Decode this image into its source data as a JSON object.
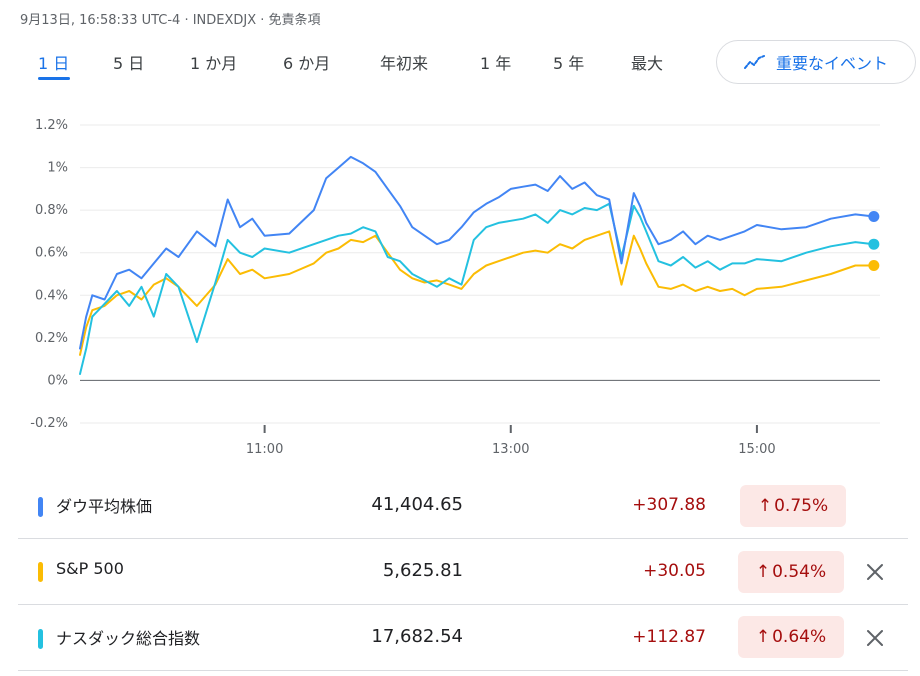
{
  "header": {
    "meta": "9月13日, 16:58:33 UTC-4 · INDEXDJX · 免責条項"
  },
  "tabs": [
    {
      "label": "1 日",
      "active": true
    },
    {
      "label": "5 日",
      "active": false
    },
    {
      "label": "1 か月",
      "active": false
    },
    {
      "label": "6 か月",
      "active": false
    },
    {
      "label": "年初来",
      "active": false
    },
    {
      "label": "1 年",
      "active": false
    },
    {
      "label": "5 年",
      "active": false
    },
    {
      "label": "最大",
      "active": false
    }
  ],
  "events_button": {
    "label": "重要なイベント",
    "icon": "trend-line-icon"
  },
  "chart_data": {
    "type": "line",
    "x_unit": "hours (ET)",
    "xlim": [
      9.5,
      16.0
    ],
    "ylim": [
      -0.2,
      1.2
    ],
    "y_ticks": [
      "1.2%",
      "1%",
      "0.8%",
      "0.6%",
      "0.4%",
      "0.2%",
      "0%",
      "-0.2%"
    ],
    "y_tick_values": [
      1.2,
      1.0,
      0.8,
      0.6,
      0.4,
      0.2,
      0.0,
      -0.2
    ],
    "x_ticks": [
      "11:00",
      "13:00",
      "15:00"
    ],
    "x_tick_values": [
      11.0,
      13.0,
      15.0
    ],
    "series": [
      {
        "name": "ダウ平均株価",
        "color": "#4285f4",
        "x": [
          9.5,
          9.55,
          9.6,
          9.7,
          9.8,
          9.9,
          10.0,
          10.1,
          10.2,
          10.3,
          10.45,
          10.6,
          10.7,
          10.8,
          10.9,
          11.0,
          11.2,
          11.4,
          11.5,
          11.6,
          11.7,
          11.8,
          11.9,
          12.0,
          12.1,
          12.2,
          12.3,
          12.4,
          12.5,
          12.6,
          12.7,
          12.8,
          12.9,
          13.0,
          13.1,
          13.2,
          13.3,
          13.4,
          13.5,
          13.6,
          13.7,
          13.8,
          13.9,
          14.0,
          14.05,
          14.1,
          14.2,
          14.3,
          14.4,
          14.5,
          14.6,
          14.7,
          14.8,
          14.9,
          15.0,
          15.2,
          15.4,
          15.6,
          15.8,
          15.95
        ],
        "y": [
          0.15,
          0.3,
          0.4,
          0.38,
          0.5,
          0.52,
          0.48,
          0.55,
          0.62,
          0.58,
          0.7,
          0.63,
          0.85,
          0.72,
          0.76,
          0.68,
          0.69,
          0.8,
          0.95,
          1.0,
          1.05,
          1.02,
          0.98,
          0.9,
          0.82,
          0.72,
          0.68,
          0.64,
          0.66,
          0.72,
          0.79,
          0.83,
          0.86,
          0.9,
          0.91,
          0.92,
          0.89,
          0.96,
          0.9,
          0.93,
          0.87,
          0.85,
          0.55,
          0.88,
          0.82,
          0.74,
          0.64,
          0.66,
          0.7,
          0.64,
          0.68,
          0.66,
          0.68,
          0.7,
          0.73,
          0.71,
          0.72,
          0.76,
          0.78,
          0.77
        ]
      },
      {
        "name": "S&P 500",
        "color": "#fbbc04",
        "x": [
          9.5,
          9.55,
          9.6,
          9.7,
          9.8,
          9.9,
          10.0,
          10.1,
          10.2,
          10.3,
          10.45,
          10.6,
          10.7,
          10.8,
          10.9,
          11.0,
          11.2,
          11.4,
          11.5,
          11.6,
          11.7,
          11.8,
          11.9,
          12.0,
          12.1,
          12.2,
          12.3,
          12.4,
          12.5,
          12.6,
          12.7,
          12.8,
          12.9,
          13.0,
          13.1,
          13.2,
          13.3,
          13.4,
          13.5,
          13.6,
          13.7,
          13.8,
          13.9,
          14.0,
          14.05,
          14.1,
          14.2,
          14.3,
          14.4,
          14.5,
          14.6,
          14.7,
          14.8,
          14.9,
          15.0,
          15.2,
          15.4,
          15.6,
          15.8,
          15.95
        ],
        "y": [
          0.12,
          0.25,
          0.33,
          0.35,
          0.4,
          0.42,
          0.38,
          0.45,
          0.48,
          0.44,
          0.35,
          0.45,
          0.57,
          0.5,
          0.52,
          0.48,
          0.5,
          0.55,
          0.6,
          0.62,
          0.66,
          0.65,
          0.68,
          0.6,
          0.52,
          0.48,
          0.46,
          0.47,
          0.45,
          0.43,
          0.5,
          0.54,
          0.56,
          0.58,
          0.6,
          0.61,
          0.6,
          0.64,
          0.62,
          0.66,
          0.68,
          0.7,
          0.45,
          0.68,
          0.62,
          0.55,
          0.44,
          0.43,
          0.45,
          0.42,
          0.44,
          0.42,
          0.43,
          0.4,
          0.43,
          0.44,
          0.47,
          0.5,
          0.54,
          0.54
        ]
      },
      {
        "name": "ナスダック総合指数",
        "color": "#24c1e0",
        "x": [
          9.5,
          9.55,
          9.6,
          9.7,
          9.8,
          9.9,
          10.0,
          10.1,
          10.2,
          10.3,
          10.45,
          10.6,
          10.7,
          10.8,
          10.9,
          11.0,
          11.2,
          11.4,
          11.5,
          11.6,
          11.7,
          11.8,
          11.9,
          12.0,
          12.1,
          12.2,
          12.3,
          12.4,
          12.5,
          12.6,
          12.7,
          12.8,
          12.9,
          13.0,
          13.1,
          13.2,
          13.3,
          13.4,
          13.5,
          13.6,
          13.7,
          13.8,
          13.9,
          14.0,
          14.05,
          14.1,
          14.2,
          14.3,
          14.4,
          14.5,
          14.6,
          14.7,
          14.8,
          14.9,
          15.0,
          15.2,
          15.4,
          15.6,
          15.8,
          15.95
        ],
        "y": [
          0.03,
          0.15,
          0.3,
          0.36,
          0.42,
          0.35,
          0.44,
          0.3,
          0.5,
          0.44,
          0.18,
          0.46,
          0.66,
          0.6,
          0.58,
          0.62,
          0.6,
          0.64,
          0.66,
          0.68,
          0.69,
          0.72,
          0.7,
          0.58,
          0.56,
          0.5,
          0.47,
          0.44,
          0.48,
          0.45,
          0.66,
          0.72,
          0.74,
          0.75,
          0.76,
          0.78,
          0.74,
          0.8,
          0.78,
          0.81,
          0.8,
          0.83,
          0.58,
          0.82,
          0.77,
          0.7,
          0.56,
          0.54,
          0.58,
          0.53,
          0.56,
          0.52,
          0.55,
          0.55,
          0.57,
          0.56,
          0.6,
          0.63,
          0.65,
          0.64
        ]
      }
    ]
  },
  "indices": [
    {
      "name": "ダウ平均株価",
      "color": "#4285f4",
      "value": "41,404.65",
      "change": "+307.88",
      "percent": "0.75%",
      "removable": false
    },
    {
      "name": "S&P 500",
      "color": "#fbbc04",
      "value": "5,625.81",
      "change": "+30.05",
      "percent": "0.54%",
      "removable": true
    },
    {
      "name": "ナスダック総合指数",
      "color": "#24c1e0",
      "value": "17,682.54",
      "change": "+112.87",
      "percent": "0.64%",
      "removable": true
    }
  ]
}
